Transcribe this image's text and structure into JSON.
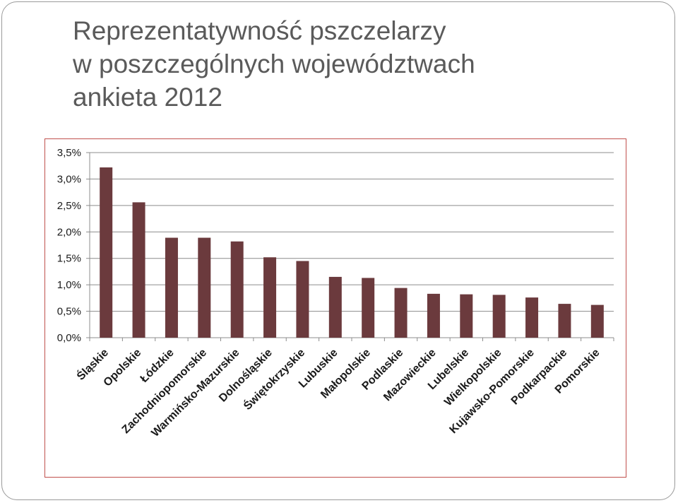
{
  "title": {
    "line1": "Reprezentatywność pszczelarzy",
    "line2": "w poszczególnych województwach",
    "line3": "ankieta 2012"
  },
  "colors": {
    "bar": "#6b3a3d",
    "frame": "#c0504d",
    "grid": "#8c8c8c",
    "text": "#1a1a1a",
    "title": "#5a5a5a"
  },
  "chart_data": {
    "type": "bar",
    "title": "",
    "xlabel": "",
    "ylabel": "",
    "ylim": [
      0,
      0.035
    ],
    "y_ticks": [
      "0,0%",
      "0,5%",
      "1,0%",
      "1,5%",
      "2,0%",
      "2,5%",
      "3,0%",
      "3,5%"
    ],
    "y_tick_values": [
      0,
      0.005,
      0.01,
      0.015,
      0.02,
      0.025,
      0.03,
      0.035
    ],
    "grid": true,
    "legend": "none",
    "categories": [
      "Śląskie",
      "Opolskie",
      "Łódzkie",
      "Zachodniopomorskie",
      "Warmińsko-Mazurskie",
      "Dolnośląskie",
      "Świętokrzyskie",
      "Lubuskie",
      "Małopolskie",
      "Podlaskie",
      "Mazowieckie",
      "Lubelskie",
      "Wielkopolskie",
      "Kujawsko-Pomorskie",
      "Podkarpackie",
      "Pomorskie"
    ],
    "values": [
      0.0322,
      0.0256,
      0.0189,
      0.0189,
      0.0182,
      0.0152,
      0.0145,
      0.0115,
      0.0113,
      0.0094,
      0.0083,
      0.0082,
      0.0081,
      0.0076,
      0.0064,
      0.0062
    ]
  }
}
